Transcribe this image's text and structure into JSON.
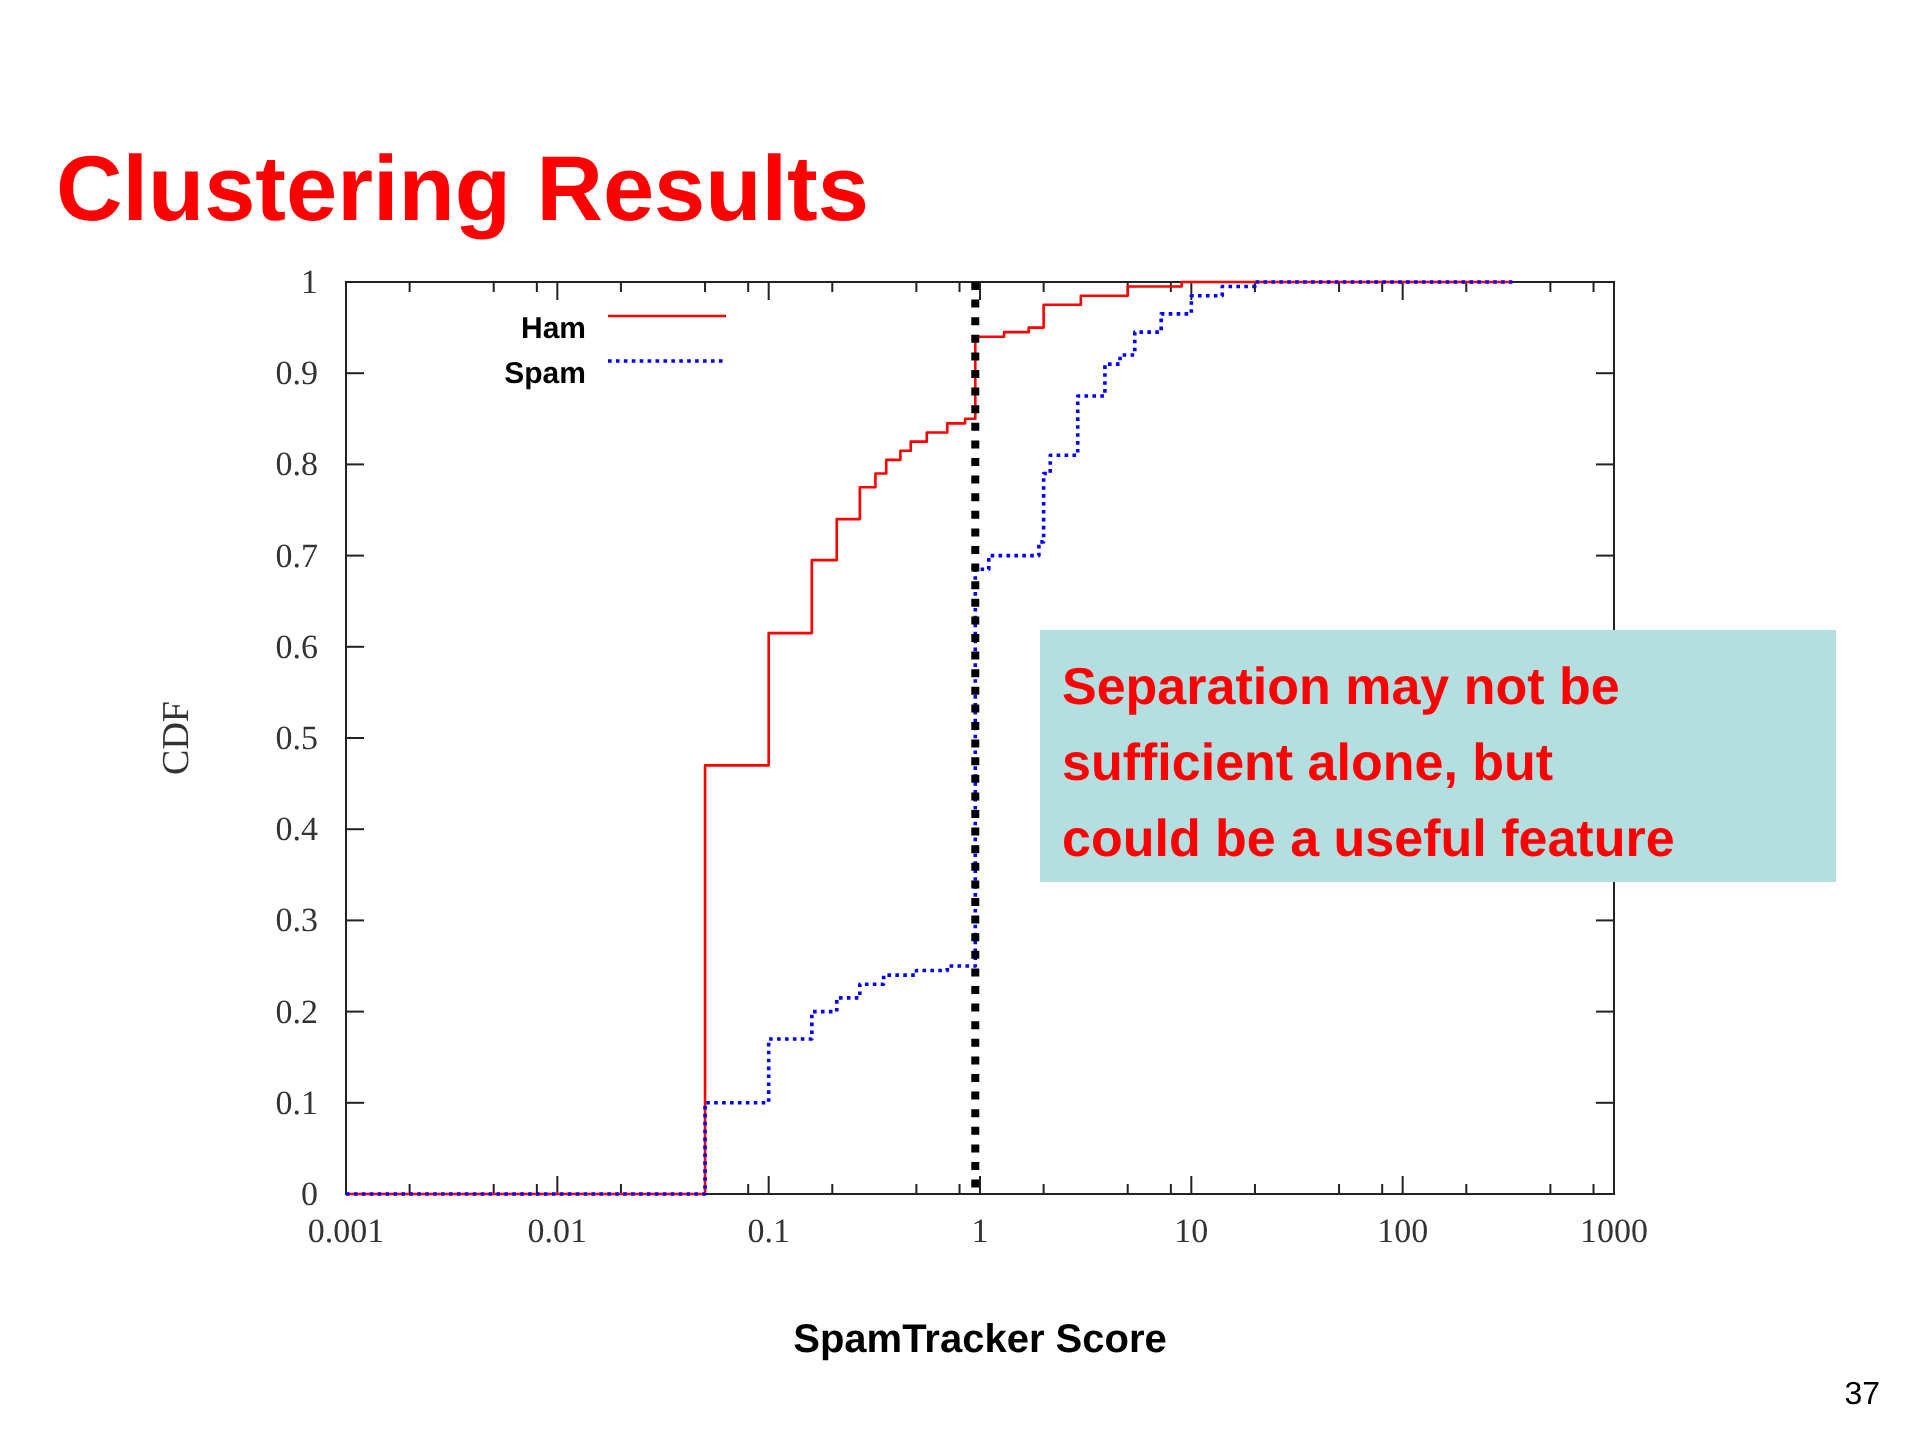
{
  "chart_data": {
    "type": "step",
    "title": "Clustering Results",
    "xlabel": "SpamTracker Score",
    "ylabel": "CDF",
    "annotations": [
      "Separation may not be sufficient alone, but could be a useful feature",
      "37"
    ],
    "log": "x",
    "xlim": [
      0.001,
      1000
    ],
    "ylim": [
      0,
      1
    ],
    "xticks": [
      0.001,
      {
        "value": 0.002,
        "label": null
      },
      {
        "value": 0.005,
        "label": null
      },
      {
        "value": 0.008,
        "label": null
      },
      0.01,
      {
        "value": 0.02,
        "label": null
      },
      {
        "value": 0.05,
        "label": null
      },
      {
        "value": 0.08,
        "label": null
      },
      0.1,
      {
        "value": 0.2,
        "label": null
      },
      {
        "value": 0.5,
        "label": null
      },
      {
        "value": 0.8,
        "label": null
      },
      1,
      {
        "value": 2,
        "label": null
      },
      {
        "value": 5,
        "label": null
      },
      {
        "value": 8,
        "label": null
      },
      10,
      {
        "value": 20,
        "label": null
      },
      {
        "value": 50,
        "label": null
      },
      {
        "value": 80,
        "label": null
      },
      100,
      {
        "value": 200,
        "label": null
      },
      {
        "value": 500,
        "label": null
      },
      {
        "value": 800,
        "label": null
      },
      1000
    ],
    "yticks": [
      0,
      0.1,
      0.2,
      0.3,
      0.4,
      0.5,
      0.6,
      0.7,
      0.8,
      0.9,
      1
    ],
    "legend": "top left",
    "ref_lines": [
      {
        "axis": "x",
        "value": 0.95,
        "color": "#000000",
        "line_style": "dotted"
      }
    ],
    "series": [
      {
        "name": "Ham",
        "color": "#ff0000",
        "line_style": "solid",
        "x": [
          0.001,
          0.05,
          0.1,
          0.16,
          0.21,
          0.27,
          0.32,
          0.36,
          0.42,
          0.47,
          0.56,
          0.7,
          0.85,
          0.95,
          1.3,
          1.7,
          2,
          3,
          5,
          9,
          330
        ],
        "values": [
          0,
          0.47,
          0.615,
          0.695,
          0.74,
          0.775,
          0.79,
          0.805,
          0.815,
          0.825,
          0.835,
          0.845,
          0.85,
          0.94,
          0.945,
          0.95,
          0.975,
          0.985,
          0.995,
          1,
          1
        ]
      },
      {
        "name": "Spam",
        "color": "#0000ff",
        "line_style": "dotted",
        "x": [
          0.001,
          0.05,
          0.1,
          0.16,
          0.21,
          0.27,
          0.35,
          0.5,
          0.7,
          0.95,
          1.1,
          1.9,
          2,
          2.15,
          2.9,
          3.9,
          4.6,
          5.4,
          7.2,
          10,
          14,
          20,
          330
        ],
        "values": [
          0,
          0.1,
          0.17,
          0.2,
          0.215,
          0.23,
          0.24,
          0.245,
          0.25,
          0.685,
          0.7,
          0.715,
          0.79,
          0.81,
          0.875,
          0.91,
          0.92,
          0.945,
          0.965,
          0.985,
          0.995,
          1,
          1
        ]
      }
    ]
  }
}
